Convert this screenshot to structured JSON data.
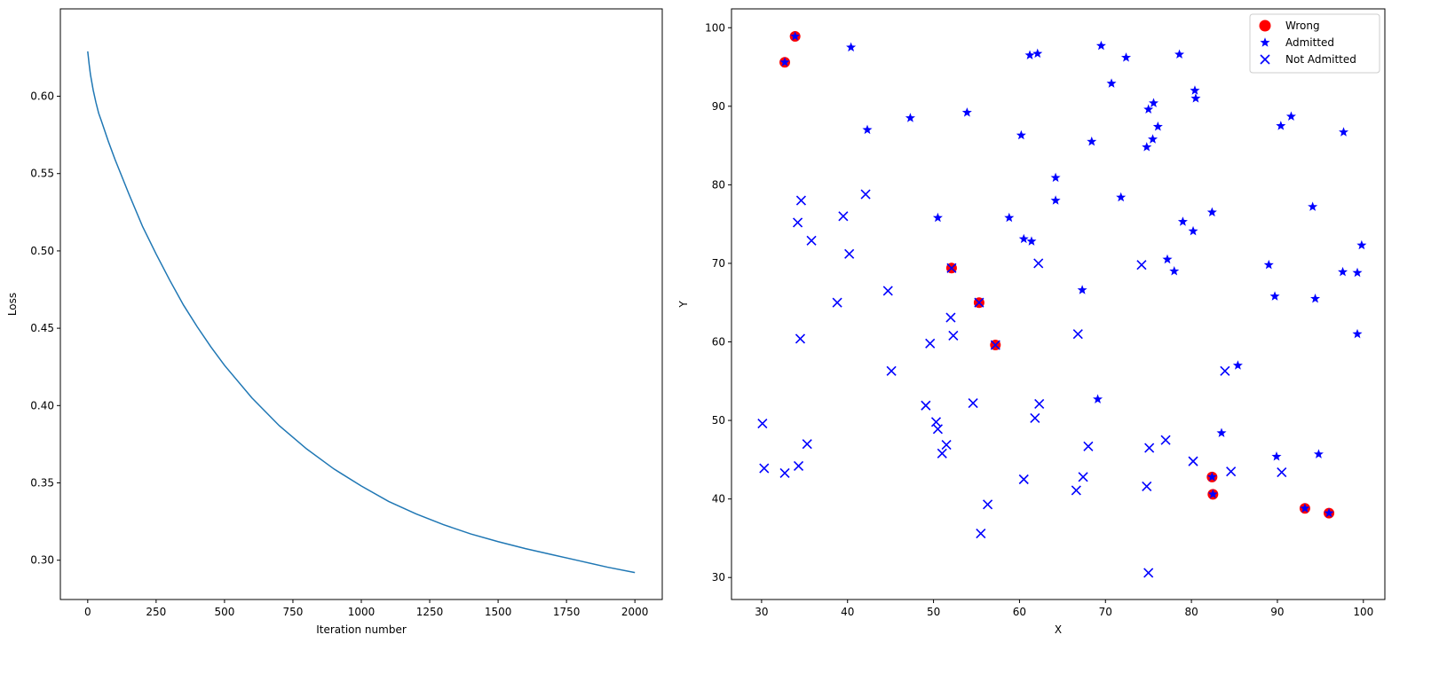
{
  "chart_data": [
    {
      "type": "line",
      "title": "",
      "xlabel": "Iteration number",
      "ylabel": "Loss",
      "xlim": [
        -100,
        2100
      ],
      "ylim": [
        0.2746,
        0.6565
      ],
      "xticks": [
        0,
        250,
        500,
        750,
        1000,
        1250,
        1500,
        1750,
        2000
      ],
      "xtick_labels": [
        "0",
        "250",
        "500",
        "750",
        "1000",
        "1250",
        "1500",
        "1750",
        "2000"
      ],
      "yticks": [
        0.3,
        0.35,
        0.4,
        0.45,
        0.5,
        0.55,
        0.6
      ],
      "ytick_labels": [
        "0.30",
        "0.35",
        "0.40",
        "0.45",
        "0.50",
        "0.55",
        "0.60"
      ],
      "grid": false,
      "series": [
        {
          "color": "#1f77b4",
          "x": [
            0,
            5,
            10,
            20,
            30,
            40,
            50,
            75,
            100,
            150,
            200,
            250,
            300,
            350,
            400,
            450,
            500,
            600,
            700,
            800,
            900,
            1000,
            1100,
            1200,
            1300,
            1400,
            1500,
            1600,
            1700,
            1800,
            1900,
            2000
          ],
          "y": [
            0.629,
            0.621,
            0.614,
            0.604,
            0.596,
            0.589,
            0.584,
            0.571,
            0.559,
            0.537,
            0.516,
            0.498,
            0.481,
            0.465,
            0.451,
            0.438,
            0.426,
            0.405,
            0.387,
            0.372,
            0.359,
            0.348,
            0.338,
            0.33,
            0.323,
            0.317,
            0.312,
            0.3075,
            0.3035,
            0.2995,
            0.2955,
            0.292
          ]
        }
      ]
    },
    {
      "type": "scatter",
      "title": "",
      "xlabel": "X",
      "ylabel": "Y",
      "xlim": [
        26.5,
        102.5
      ],
      "ylim": [
        27.2,
        102.4
      ],
      "xticks": [
        30,
        40,
        50,
        60,
        70,
        80,
        90,
        100
      ],
      "xtick_labels": [
        "30",
        "40",
        "50",
        "60",
        "70",
        "80",
        "90",
        "100"
      ],
      "yticks": [
        30,
        40,
        50,
        60,
        70,
        80,
        90,
        100
      ],
      "ytick_labels": [
        "30",
        "40",
        "50",
        "60",
        "70",
        "80",
        "90",
        "100"
      ],
      "grid": false,
      "legend_position": "top-right",
      "series": [
        {
          "name": "Wrong",
          "marker": "circle",
          "color": "#ff0000",
          "points": [
            [
              32.7,
              95.6
            ],
            [
              33.9,
              98.9
            ],
            [
              52.1,
              69.4
            ],
            [
              55.3,
              65.0
            ],
            [
              57.2,
              59.6
            ],
            [
              82.4,
              42.8
            ],
            [
              82.5,
              40.6
            ],
            [
              93.2,
              38.8
            ],
            [
              96.0,
              38.2
            ]
          ]
        },
        {
          "name": "Admitted",
          "marker": "star",
          "color": "#0000ff",
          "points": [
            [
              32.7,
              95.6
            ],
            [
              33.9,
              98.9
            ],
            [
              40.4,
              97.5
            ],
            [
              42.3,
              87.0
            ],
            [
              47.3,
              88.5
            ],
            [
              50.5,
              75.8
            ],
            [
              53.9,
              89.2
            ],
            [
              58.8,
              75.8
            ],
            [
              60.2,
              86.3
            ],
            [
              60.5,
              73.1
            ],
            [
              61.2,
              96.5
            ],
            [
              61.4,
              72.8
            ],
            [
              62.1,
              96.7
            ],
            [
              64.2,
              78.0
            ],
            [
              64.2,
              80.9
            ],
            [
              67.3,
              66.6
            ],
            [
              68.4,
              85.5
            ],
            [
              69.1,
              52.7
            ],
            [
              69.5,
              97.7
            ],
            [
              70.7,
              92.9
            ],
            [
              71.8,
              78.4
            ],
            [
              72.4,
              96.2
            ],
            [
              74.8,
              84.8
            ],
            [
              75.0,
              89.6
            ],
            [
              75.5,
              85.8
            ],
            [
              75.6,
              90.4
            ],
            [
              76.1,
              87.4
            ],
            [
              77.2,
              70.5
            ],
            [
              78.0,
              69.0
            ],
            [
              78.6,
              96.6
            ],
            [
              79.0,
              75.3
            ],
            [
              80.2,
              74.1
            ],
            [
              80.4,
              92.0
            ],
            [
              80.5,
              91.0
            ],
            [
              82.4,
              76.5
            ],
            [
              82.4,
              42.8
            ],
            [
              82.5,
              40.6
            ],
            [
              83.5,
              48.4
            ],
            [
              85.4,
              57.0
            ],
            [
              89.0,
              69.8
            ],
            [
              89.7,
              65.8
            ],
            [
              89.9,
              45.4
            ],
            [
              90.4,
              87.5
            ],
            [
              91.6,
              88.7
            ],
            [
              93.2,
              38.8
            ],
            [
              94.1,
              77.2
            ],
            [
              94.4,
              65.5
            ],
            [
              94.8,
              45.7
            ],
            [
              96.0,
              38.2
            ],
            [
              97.6,
              68.9
            ],
            [
              97.7,
              86.7
            ],
            [
              99.3,
              68.8
            ],
            [
              99.3,
              61.0
            ],
            [
              99.8,
              72.3
            ]
          ]
        },
        {
          "name": "Not Admitted",
          "marker": "x",
          "color": "#0000ff",
          "points": [
            [
              30.1,
              49.6
            ],
            [
              30.3,
              43.9
            ],
            [
              32.7,
              43.3
            ],
            [
              34.2,
              75.2
            ],
            [
              34.3,
              44.2
            ],
            [
              34.5,
              60.4
            ],
            [
              34.6,
              78.0
            ],
            [
              35.3,
              47.0
            ],
            [
              35.8,
              72.9
            ],
            [
              38.8,
              65.0
            ],
            [
              39.5,
              76.0
            ],
            [
              40.2,
              71.2
            ],
            [
              42.1,
              78.8
            ],
            [
              44.7,
              66.5
            ],
            [
              45.1,
              56.3
            ],
            [
              49.1,
              51.9
            ],
            [
              49.6,
              59.8
            ],
            [
              50.3,
              49.8
            ],
            [
              50.5,
              48.9
            ],
            [
              51.0,
              45.8
            ],
            [
              51.5,
              46.9
            ],
            [
              52.0,
              63.1
            ],
            [
              52.1,
              69.4
            ],
            [
              52.3,
              60.8
            ],
            [
              54.6,
              52.2
            ],
            [
              55.3,
              65.0
            ],
            [
              55.5,
              35.6
            ],
            [
              56.3,
              39.3
            ],
            [
              57.2,
              59.6
            ],
            [
              60.5,
              42.5
            ],
            [
              61.8,
              50.3
            ],
            [
              62.2,
              70.0
            ],
            [
              62.3,
              52.1
            ],
            [
              66.6,
              41.1
            ],
            [
              66.8,
              61.0
            ],
            [
              67.4,
              42.8
            ],
            [
              68.0,
              46.7
            ],
            [
              74.2,
              69.8
            ],
            [
              74.8,
              41.6
            ],
            [
              75.0,
              30.6
            ],
            [
              75.1,
              46.5
            ],
            [
              77.0,
              47.5
            ],
            [
              80.2,
              44.8
            ],
            [
              83.9,
              56.3
            ],
            [
              84.6,
              43.5
            ],
            [
              90.5,
              43.4
            ]
          ]
        }
      ]
    }
  ]
}
